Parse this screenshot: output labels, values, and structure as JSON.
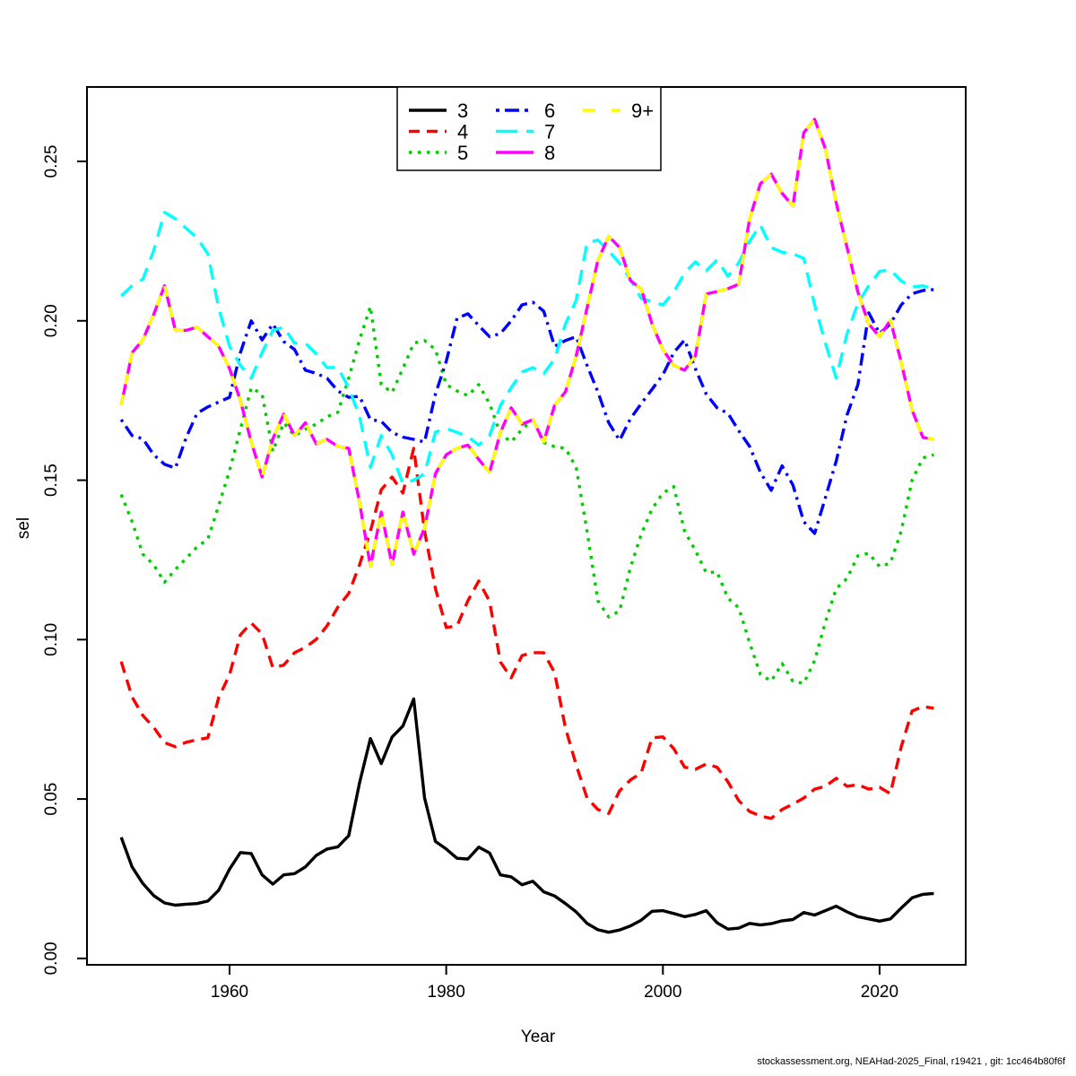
{
  "footer": {
    "text": "stockassessment.org, NEAHad-2025_Final, r19421 , git: 1cc464b80f6f"
  },
  "chart_data": {
    "type": "line",
    "title": "",
    "xlabel": "Year",
    "ylabel": "sel",
    "grid": false,
    "legend_position": "top-center",
    "legend_entries": [
      "3",
      "4",
      "5",
      "6",
      "7",
      "8",
      "9+"
    ],
    "x_ticks": [
      1960,
      1980,
      2000,
      2020
    ],
    "y_tick_labels": [
      "0.00",
      "0.05",
      "0.10",
      "0.15",
      "0.20",
      "0.25"
    ],
    "y_tick_values": [
      0.0,
      0.05,
      0.1,
      0.15,
      0.2,
      0.25
    ],
    "xlim": [
      1946.84,
      2027.95
    ],
    "ylim": [
      -0.002,
      0.27334
    ],
    "x_start_year": 1950,
    "x_end_year": 2025,
    "series": [
      {
        "name": "3",
        "color": "#000000",
        "dash": "solid",
        "values": [
          0.038,
          0.0287,
          0.0235,
          0.0197,
          0.0174,
          0.0167,
          0.017,
          0.0172,
          0.018,
          0.0214,
          0.028,
          0.0332,
          0.0329,
          0.0262,
          0.0233,
          0.0262,
          0.0266,
          0.0287,
          0.0323,
          0.0343,
          0.035,
          0.0385,
          0.0551,
          0.069,
          0.0611,
          0.0694,
          0.0729,
          0.0814,
          0.0503,
          0.0367,
          0.0343,
          0.0314,
          0.0312,
          0.0349,
          0.0331,
          0.0262,
          0.0256,
          0.0231,
          0.0242,
          0.0209,
          0.0196,
          0.0172,
          0.0146,
          0.011,
          0.009,
          0.0082,
          0.0089,
          0.0102,
          0.012,
          0.0148,
          0.015,
          0.0141,
          0.0131,
          0.0138,
          0.015,
          0.0112,
          0.0092,
          0.0095,
          0.011,
          0.0105,
          0.0109,
          0.0118,
          0.0122,
          0.0144,
          0.0136,
          0.015,
          0.0164,
          0.0146,
          0.0131,
          0.0124,
          0.0117,
          0.0124,
          0.0158,
          0.019,
          0.0201,
          0.0204
        ]
      },
      {
        "name": "4",
        "color": "#FF0000",
        "dash": "dashed",
        "values": [
          0.0931,
          0.082,
          0.0762,
          0.0725,
          0.0677,
          0.0664,
          0.0678,
          0.0686,
          0.0692,
          0.0818,
          0.089,
          0.1015,
          0.1052,
          0.1018,
          0.0912,
          0.092,
          0.0959,
          0.0976,
          0.1001,
          0.1043,
          0.1102,
          0.1145,
          0.1235,
          0.134,
          0.147,
          0.151,
          0.146,
          0.16,
          0.134,
          0.116,
          0.1038,
          0.1043,
          0.1122,
          0.1184,
          0.112,
          0.093,
          0.088,
          0.095,
          0.0959,
          0.0959,
          0.0897,
          0.0723,
          0.0607,
          0.0503,
          0.0467,
          0.0455,
          0.0526,
          0.056,
          0.0582,
          0.0692,
          0.0695,
          0.0658,
          0.06,
          0.0593,
          0.061,
          0.06,
          0.0554,
          0.0495,
          0.0461,
          0.0447,
          0.0439,
          0.0467,
          0.0484,
          0.0503,
          0.0531,
          0.054,
          0.0565,
          0.054,
          0.0545,
          0.0531,
          0.0537,
          0.0517,
          0.0664,
          0.0776,
          0.079,
          0.0785
        ]
      },
      {
        "name": "5",
        "color": "#00CD00",
        "dash": "dotted",
        "values": [
          0.1455,
          0.137,
          0.1268,
          0.1235,
          0.118,
          0.122,
          0.1255,
          0.1291,
          0.1315,
          0.142,
          0.153,
          0.166,
          0.179,
          0.177,
          0.159,
          0.168,
          0.164,
          0.166,
          0.1676,
          0.1699,
          0.1713,
          0.182,
          0.194,
          0.2045,
          0.18,
          0.1775,
          0.185,
          0.193,
          0.1938,
          0.191,
          0.18,
          0.178,
          0.1765,
          0.18,
          0.174,
          0.1645,
          0.162,
          0.166,
          0.169,
          0.1618,
          0.1605,
          0.16,
          0.154,
          0.134,
          0.1122,
          0.1071,
          0.109,
          0.1226,
          0.133,
          0.141,
          0.146,
          0.148,
          0.134,
          0.128,
          0.121,
          0.1212,
          0.113,
          0.11,
          0.099,
          0.0891,
          0.087,
          0.0925,
          0.0869,
          0.0863,
          0.0934,
          0.1055,
          0.116,
          0.1192,
          0.1263,
          0.1271,
          0.1229,
          0.124,
          0.134,
          0.15,
          0.157,
          0.158
        ]
      },
      {
        "name": "6",
        "color": "#0000FF",
        "dash": "dotdash",
        "values": [
          0.169,
          0.164,
          0.163,
          0.158,
          0.155,
          0.1538,
          0.1634,
          0.171,
          0.173,
          0.1745,
          0.176,
          0.19,
          0.2,
          0.194,
          0.199,
          0.1935,
          0.191,
          0.1845,
          0.1835,
          0.182,
          0.178,
          0.176,
          0.1763,
          0.169,
          0.1685,
          0.165,
          0.1635,
          0.1628,
          0.162,
          0.177,
          0.1873,
          0.2008,
          0.2022,
          0.1985,
          0.195,
          0.196,
          0.2,
          0.205,
          0.2058,
          0.203,
          0.192,
          0.1938,
          0.195,
          0.186,
          0.1777,
          0.168,
          0.1625,
          0.1693,
          0.174,
          0.1785,
          0.1831,
          0.19,
          0.194,
          0.185,
          0.177,
          0.1727,
          0.171,
          0.1655,
          0.1606,
          0.1525,
          0.1468,
          0.1545,
          0.1485,
          0.137,
          0.1333,
          0.1445,
          0.156,
          0.1705,
          0.18,
          0.2025,
          0.196,
          0.199,
          0.205,
          0.2085,
          0.2095,
          0.2098
        ]
      },
      {
        "name": "7",
        "color": "#00FFFF",
        "dash": "longdash",
        "values": [
          0.2078,
          0.211,
          0.213,
          0.222,
          0.234,
          0.232,
          0.229,
          0.226,
          0.221,
          0.204,
          0.192,
          0.186,
          0.182,
          0.19,
          0.197,
          0.198,
          0.193,
          0.193,
          0.1896,
          0.1853,
          0.1853,
          0.179,
          0.17,
          0.154,
          0.164,
          0.158,
          0.149,
          0.15,
          0.152,
          0.1651,
          0.1662,
          0.165,
          0.1637,
          0.161,
          0.164,
          0.1735,
          0.179,
          0.1839,
          0.1853,
          0.1834,
          0.188,
          0.199,
          0.2064,
          0.2245,
          0.2253,
          0.2219,
          0.218,
          0.213,
          0.207,
          0.206,
          0.205,
          0.209,
          0.215,
          0.2185,
          0.2157,
          0.2191,
          0.214,
          0.2182,
          0.225,
          0.23,
          0.223,
          0.2215,
          0.221,
          0.2196,
          0.205,
          0.193,
          0.182,
          0.196,
          0.2055,
          0.211,
          0.2155,
          0.216,
          0.2125,
          0.2106,
          0.211,
          0.21
        ]
      },
      {
        "name": "8",
        "color": "#FF00FF",
        "dash": "solid",
        "values": [
          0.1735,
          0.19,
          0.194,
          0.202,
          0.211,
          0.197,
          0.197,
          0.198,
          0.195,
          0.192,
          0.185,
          0.175,
          0.162,
          0.151,
          0.163,
          0.1707,
          0.164,
          0.168,
          0.1614,
          0.1628,
          0.1606,
          0.16,
          0.143,
          0.123,
          0.14,
          0.1235,
          0.14,
          0.1268,
          0.135,
          0.152,
          0.158,
          0.16,
          0.161,
          0.1565,
          0.1525,
          0.165,
          0.1727,
          0.1676,
          0.169,
          0.162,
          0.1735,
          0.1777,
          0.189,
          0.204,
          0.219,
          0.2265,
          0.223,
          0.2126,
          0.21,
          0.199,
          0.191,
          0.186,
          0.1845,
          0.189,
          0.2084,
          0.2092,
          0.2101,
          0.2115,
          0.232,
          0.243,
          0.246,
          0.24,
          0.236,
          0.259,
          0.2632,
          0.254,
          0.237,
          0.223,
          0.209,
          0.199,
          0.195,
          0.2002,
          0.187,
          0.172,
          0.1634,
          0.1628
        ]
      },
      {
        "name": "9+",
        "color": "#FFFF00",
        "dash": "overlaydash",
        "values": [
          0.1735,
          0.19,
          0.194,
          0.202,
          0.211,
          0.197,
          0.197,
          0.198,
          0.195,
          0.192,
          0.185,
          0.175,
          0.162,
          0.151,
          0.163,
          0.1707,
          0.164,
          0.168,
          0.1614,
          0.1628,
          0.1606,
          0.16,
          0.143,
          0.123,
          0.14,
          0.1235,
          0.14,
          0.1268,
          0.135,
          0.152,
          0.158,
          0.16,
          0.161,
          0.1565,
          0.1525,
          0.165,
          0.1727,
          0.1676,
          0.169,
          0.162,
          0.1735,
          0.1777,
          0.189,
          0.204,
          0.219,
          0.2265,
          0.223,
          0.2126,
          0.21,
          0.199,
          0.191,
          0.186,
          0.1845,
          0.189,
          0.2084,
          0.2092,
          0.2101,
          0.2115,
          0.232,
          0.243,
          0.246,
          0.24,
          0.236,
          0.259,
          0.2632,
          0.254,
          0.237,
          0.223,
          0.209,
          0.199,
          0.195,
          0.2002,
          0.187,
          0.172,
          0.1634,
          0.1628
        ]
      }
    ]
  }
}
